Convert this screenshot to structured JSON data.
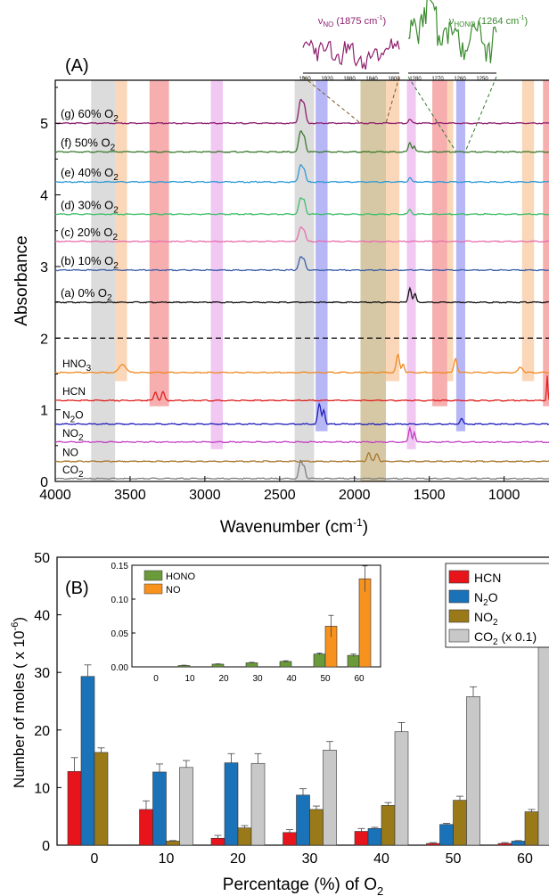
{
  "chart_data": [
    {
      "type": "line",
      "panel_label": "(A)",
      "xlabel_main": "Wavenumber (cm",
      "xlabel_sup": "-1",
      "xlabel_end": ")",
      "ylabel": "Absorbance",
      "xlim": [
        4000,
        700
      ],
      "ylim": [
        0,
        5.6
      ],
      "x_ticks": [
        4000,
        3500,
        3000,
        2500,
        2000,
        1500,
        1000
      ],
      "y_ticks": [
        0,
        1,
        2,
        3,
        4,
        5
      ],
      "divider_y": 2.0,
      "series": [
        {
          "label": "(g) 60% O",
          "sub": "2",
          "baseline": 5.0,
          "color": "#8e1f6e",
          "peaks": [
            [
              2360,
              0.33,
              18
            ],
            [
              2335,
              0.22,
              14
            ],
            [
              1630,
              0.05,
              15
            ]
          ]
        },
        {
          "label": "(f) 50% O",
          "sub": "2",
          "baseline": 4.6,
          "color": "#3a7a2e",
          "peaks": [
            [
              2360,
              0.28,
              18
            ],
            [
              2335,
              0.18,
              14
            ],
            [
              1630,
              0.13,
              14
            ],
            [
              1600,
              0.08,
              12
            ]
          ]
        },
        {
          "label": "(e) 40% O",
          "sub": "2",
          "baseline": 4.18,
          "color": "#2e9bd6",
          "peaks": [
            [
              2360,
              0.24,
              18
            ],
            [
              2335,
              0.14,
              14
            ],
            [
              1630,
              0.06,
              14
            ]
          ]
        },
        {
          "label": "(d) 30% O",
          "sub": "2",
          "baseline": 3.73,
          "color": "#3fbf6a",
          "peaks": [
            [
              2360,
              0.22,
              18
            ],
            [
              2335,
              0.16,
              14
            ],
            [
              1630,
              0.06,
              14
            ]
          ]
        },
        {
          "label": "(c) 20% O",
          "sub": "2",
          "baseline": 3.35,
          "color": "#e86fae",
          "peaks": [
            [
              2360,
              0.2,
              18
            ],
            [
              2335,
              0.13,
              14
            ]
          ]
        },
        {
          "label": "(b) 10% O",
          "sub": "2",
          "baseline": 2.95,
          "color": "#3c5fa8",
          "peaks": [
            [
              2360,
              0.18,
              18
            ],
            [
              2335,
              0.12,
              14
            ]
          ]
        },
        {
          "label": "(a) 0% O",
          "sub": "2",
          "baseline": 2.5,
          "color": "#111111",
          "peaks": [
            [
              1630,
              0.2,
              14
            ],
            [
              1595,
              0.12,
              12
            ]
          ]
        },
        {
          "label": "HNO",
          "sub": "3",
          "baseline": 1.52,
          "color": "#f08a24",
          "peaks": [
            [
              3550,
              0.12,
              30
            ],
            [
              1710,
              0.25,
              15
            ],
            [
              1675,
              0.12,
              12
            ],
            [
              1325,
              0.2,
              14
            ],
            [
              890,
              0.08,
              20
            ]
          ]
        },
        {
          "label": "HCN",
          "sub": "",
          "baseline": 1.13,
          "color": "#e02020",
          "peaks": [
            [
              3330,
              0.12,
              14
            ],
            [
              3280,
              0.12,
              14
            ],
            [
              712,
              0.35,
              6
            ]
          ]
        },
        {
          "label": "N",
          "sub": "2",
          "label_end": "O",
          "baseline": 0.8,
          "color": "#1f1fb8",
          "peaks": [
            [
              2235,
              0.28,
              14
            ],
            [
              2205,
              0.2,
              12
            ],
            [
              1285,
              0.08,
              14
            ]
          ]
        },
        {
          "label": "NO",
          "sub": "2",
          "baseline": 0.55,
          "color": "#c23fc2",
          "peaks": [
            [
              1630,
              0.2,
              12
            ],
            [
              1600,
              0.14,
              10
            ]
          ]
        },
        {
          "label": "NO",
          "sub": "",
          "baseline": 0.28,
          "color": "#a8742a",
          "peaks": [
            [
              1905,
              0.12,
              15
            ],
            [
              1850,
              0.11,
              15
            ]
          ]
        },
        {
          "label": "CO",
          "sub": "2",
          "baseline": 0.04,
          "color": "#808080",
          "peaks": [
            [
              2360,
              0.25,
              16
            ],
            [
              2335,
              0.16,
              12
            ]
          ]
        }
      ],
      "bands": [
        {
          "from": 3760,
          "to": 3600,
          "color": "#bfbfbf",
          "top": 5.6,
          "bottom": 0.0
        },
        {
          "from": 3600,
          "to": 3520,
          "color": "#f7b77f",
          "top": 5.6,
          "bottom": 1.4
        },
        {
          "from": 3370,
          "to": 3240,
          "color": "#ef6b6b",
          "top": 5.6,
          "bottom": 1.05
        },
        {
          "from": 2960,
          "to": 2880,
          "color": "#e49be8",
          "top": 5.6,
          "bottom": 0.45
        },
        {
          "from": 2400,
          "to": 2270,
          "color": "#bfbfbf",
          "top": 5.6,
          "bottom": 0.0
        },
        {
          "from": 2260,
          "to": 2180,
          "color": "#7b7bef",
          "top": 5.6,
          "bottom": 0.7
        },
        {
          "from": 1960,
          "to": 1790,
          "color": "#b59a5a",
          "top": 5.6,
          "bottom": 0.0
        },
        {
          "from": 1790,
          "to": 1700,
          "color": "#f7b77f",
          "top": 5.6,
          "bottom": 1.4
        },
        {
          "from": 1650,
          "to": 1590,
          "color": "#e49be8",
          "top": 5.6,
          "bottom": 0.45
        },
        {
          "from": 1480,
          "to": 1380,
          "color": "#ef6b6b",
          "top": 5.6,
          "bottom": 1.05
        },
        {
          "from": 1380,
          "to": 1340,
          "color": "#f7b77f",
          "top": 5.6,
          "bottom": 1.4
        },
        {
          "from": 1320,
          "to": 1260,
          "color": "#7b7bef",
          "top": 5.6,
          "bottom": 0.7
        },
        {
          "from": 880,
          "to": 800,
          "color": "#f7b77f",
          "top": 5.6,
          "bottom": 1.4
        },
        {
          "from": 740,
          "to": 700,
          "color": "#ef6b6b",
          "top": 5.6,
          "bottom": 1.05
        }
      ],
      "inset_no": {
        "label_main": "ν",
        "label_sub": "NO",
        "label_rest": " (1875 cm",
        "label_sup": "-1",
        "label_end": ")",
        "color": "#8e1f6e",
        "x_ticks": [
          1960,
          1920,
          1880,
          1840,
          1800
        ]
      },
      "inset_hono": {
        "label_main": "ν",
        "label_sub": "HONO",
        "label_rest": " (1264 cm",
        "label_sup": "-1",
        "label_end": ")",
        "color": "#3a8a2e",
        "x_ticks": [
          1280,
          1270,
          1260,
          1250
        ]
      }
    },
    {
      "type": "bar",
      "panel_label": "(B)",
      "categories": [
        "0",
        "10",
        "20",
        "30",
        "40",
        "50",
        "60"
      ],
      "xlabel_main": "Percentage (%) of O",
      "xlabel_sub": "2",
      "ylabel_main": "Number of moles ( x 10",
      "ylabel_sup": "-6",
      "ylabel_end": ")",
      "ylim": [
        0,
        50
      ],
      "y_ticks": [
        0,
        10,
        20,
        30,
        40,
        50
      ],
      "legend_position": "top-right",
      "series": [
        {
          "name": "HCN",
          "color": "#e8141c",
          "values": [
            12.8,
            6.2,
            1.2,
            2.2,
            2.4,
            0.3,
            0.3
          ],
          "errors": [
            2.4,
            1.5,
            0.5,
            0.5,
            0.5,
            0.15,
            0.15
          ]
        },
        {
          "name": "N",
          "sub": "2",
          "name_end": "O",
          "color": "#1a72b8",
          "values": [
            29.3,
            12.7,
            14.3,
            8.7,
            2.9,
            3.6,
            0.7
          ],
          "errors": [
            2.0,
            1.4,
            1.6,
            1.1,
            0.2,
            0.2,
            0.1
          ]
        },
        {
          "name": "NO",
          "sub": "2",
          "color": "#9a7a18",
          "values": [
            16.1,
            0.7,
            3.0,
            6.2,
            6.9,
            7.8,
            5.8
          ],
          "errors": [
            0.8,
            0.1,
            0.4,
            0.6,
            0.5,
            0.7,
            0.4
          ]
        },
        {
          "name": "CO",
          "sub": "2",
          "name_end": " (x 0.1)",
          "color": "#c8c8c8",
          "values": [
            null,
            13.5,
            14.2,
            16.5,
            19.7,
            25.8,
            34.5
          ],
          "errors": [
            0,
            1.2,
            1.7,
            1.5,
            1.6,
            1.7,
            2.3
          ]
        }
      ],
      "inset": {
        "type": "bar",
        "categories": [
          "0",
          "10",
          "20",
          "30",
          "40",
          "50",
          "60"
        ],
        "ylim": [
          0,
          0.15
        ],
        "y_ticks": [
          "0.00",
          "0.05",
          "0.10",
          "0.15"
        ],
        "legend_position": "top-left",
        "series": [
          {
            "name": "HONO",
            "color": "#6b9a3a",
            "values": [
              0,
              0.002,
              0.004,
              0.006,
              0.008,
              0.019,
              0.017
            ],
            "errors": [
              0,
              0.0005,
              0.0005,
              0.0008,
              0.001,
              0.0015,
              0.002
            ]
          },
          {
            "name": "NO",
            "color": "#f7921e",
            "values": [
              0,
              0,
              0,
              0,
              0,
              0.06,
              0.13
            ],
            "errors": [
              0,
              0,
              0,
              0,
              0,
              0.016,
              0.019
            ]
          }
        ]
      }
    }
  ]
}
